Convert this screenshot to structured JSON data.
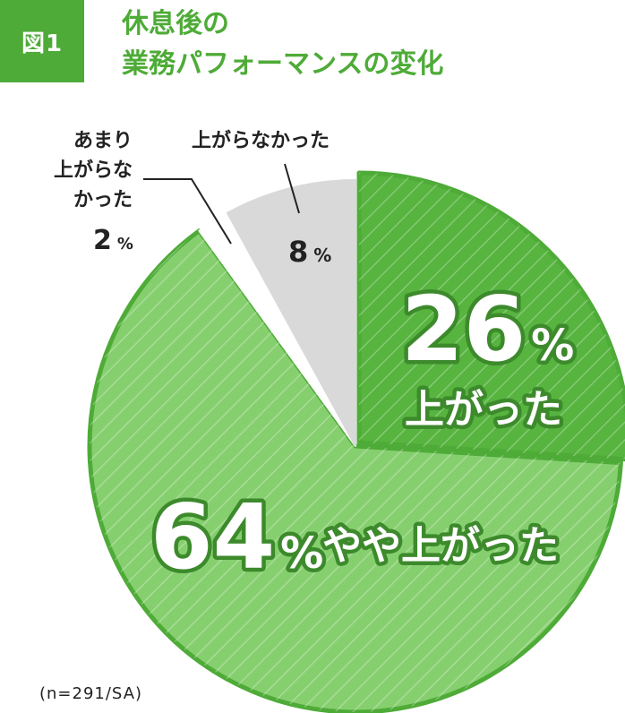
{
  "figure_label": "図1",
  "title_lines": [
    "休息後の",
    "業務パフォーマンスの変化"
  ],
  "sample_note": "(n=291/SA)",
  "colors": {
    "accent": "#4eab37",
    "dark_green": "#56b43f",
    "light_green": "#86cf6f",
    "gray": "#d9d9d9",
    "white_slice": "#ffffff"
  },
  "chart_data": {
    "type": "pie",
    "title": "休息後の業務パフォーマンスの変化",
    "unit": "%",
    "slices": [
      {
        "label": "上がった",
        "value": 26,
        "color": "#56b43f",
        "hatch": true
      },
      {
        "label": "やや上がった",
        "value": 64,
        "color": "#86cf6f",
        "hatch": true
      },
      {
        "label_lines": [
          "あまり",
          "上がらな",
          "かった"
        ],
        "value": 2,
        "color": "#ffffff",
        "hatch": false
      },
      {
        "label": "上がらなかった",
        "value": 8,
        "color": "#d9d9d9",
        "hatch": false
      }
    ]
  }
}
